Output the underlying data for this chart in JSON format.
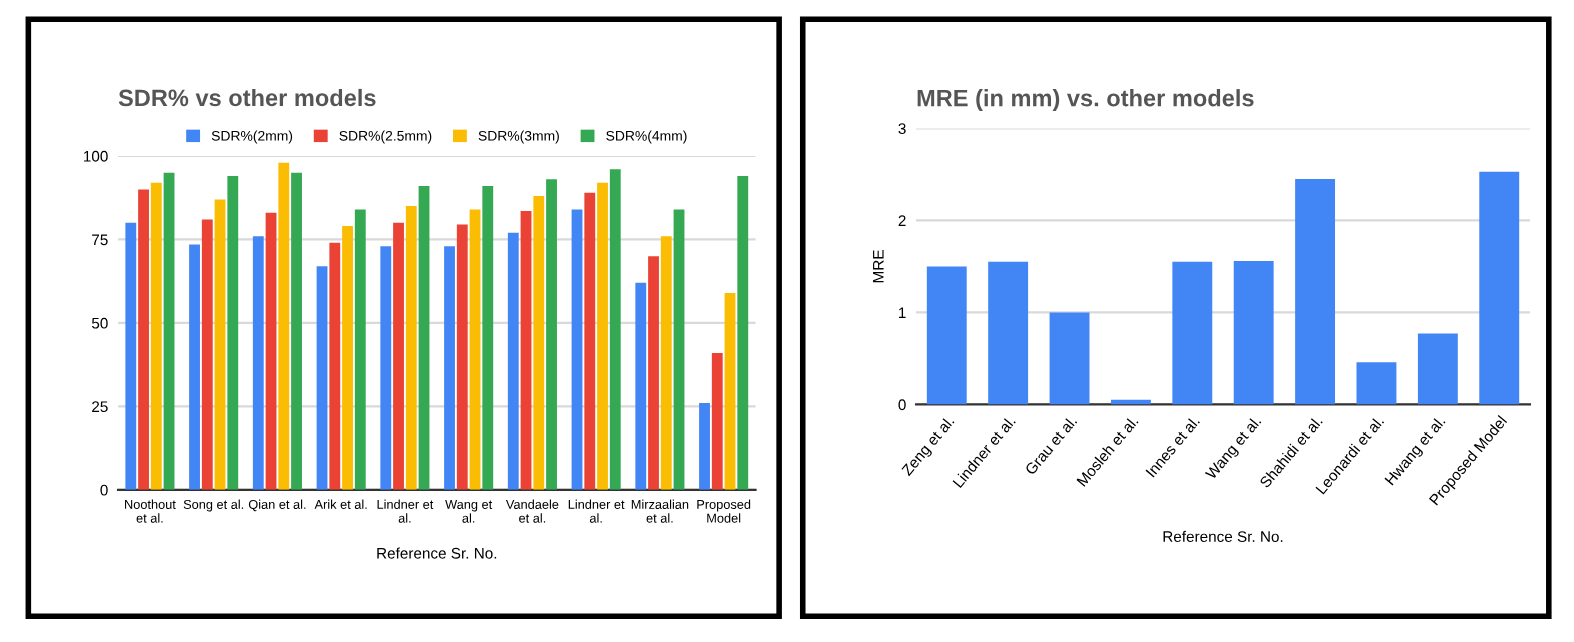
{
  "chart_data": [
    {
      "type": "bar",
      "title": "SDR% vs other models",
      "xlabel": "Reference Sr. No.",
      "categories": [
        "Noothout\net al.",
        "Song et al.",
        "Qian et al.",
        "Arik et al.",
        "Lindner et\nal.",
        "Wang et\nal.",
        "Vandaele\net al.",
        "Lindner et\nal.",
        "Mirzaalian\net al.",
        "Proposed\nModel"
      ],
      "series": [
        {
          "name": "SDR%(2mm)",
          "color": "#4285f4",
          "values": [
            80,
            73.5,
            76,
            67,
            73,
            73,
            77,
            84,
            62,
            26
          ]
        },
        {
          "name": "SDR%(2.5mm)",
          "color": "#ea4335",
          "values": [
            90,
            81,
            83,
            74,
            80,
            79.5,
            83.5,
            89,
            70,
            41
          ]
        },
        {
          "name": "SDR%(3mm)",
          "color": "#fbbc04",
          "values": [
            92,
            87,
            98,
            79,
            85,
            84,
            88,
            92,
            76,
            59
          ]
        },
        {
          "name": "SDR%(4mm)",
          "color": "#34a853",
          "values": [
            95,
            94,
            95,
            84,
            91,
            91,
            93,
            96,
            84,
            94
          ]
        }
      ],
      "ylim": [
        0,
        100
      ],
      "yticks": [
        0,
        25,
        50,
        75,
        100
      ],
      "grid": "y",
      "legend": "top"
    },
    {
      "type": "bar",
      "title": "MRE (in mm) vs. other models",
      "xlabel": "Reference Sr. No.",
      "ylabel": "MRE",
      "categories": [
        "Zeng et al.",
        "Lindner et al.",
        "Grau et al.",
        "Mosleh et al.",
        "Innes et al.",
        "Wang et al.",
        "Shahidi et al.",
        "Leonardi et al.",
        "Hwang et al.",
        "Proposed Model"
      ],
      "values": [
        1.5,
        1.55,
        1.0,
        0.05,
        1.55,
        1.56,
        2.45,
        0.46,
        0.77,
        2.53
      ],
      "color": "#4285f4",
      "ylim": [
        0,
        3
      ],
      "yticks": [
        0,
        1,
        2,
        3
      ],
      "grid": "y"
    }
  ]
}
